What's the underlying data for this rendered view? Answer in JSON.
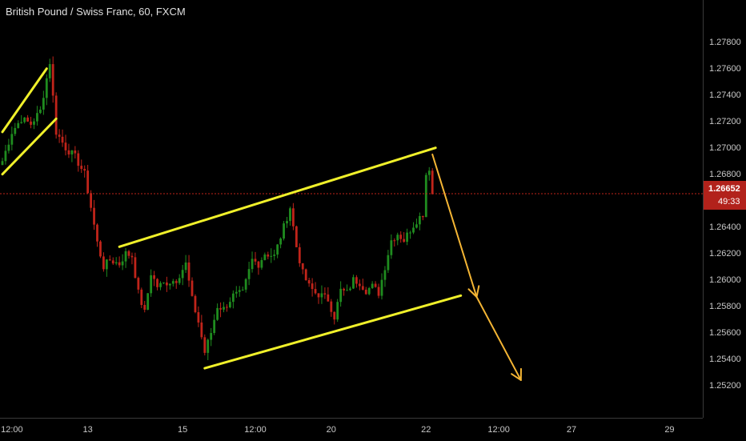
{
  "header": {
    "title": "British Pound / Swiss Franc, 60, FXCM"
  },
  "colors": {
    "up": "#1f8c1f",
    "down": "#c0241a",
    "trend_line": "#f0f02a",
    "projection": "#f4b534",
    "price_line": "#c0241a",
    "background": "#000000"
  },
  "price_axis": {
    "ticks": [
      "1.27800",
      "1.27600",
      "1.27400",
      "1.27200",
      "1.27000",
      "1.26800",
      "1.26600",
      "1.26400",
      "1.26200",
      "1.26000",
      "1.25800",
      "1.25600",
      "1.25400",
      "1.25200"
    ],
    "current_price": "1.26652",
    "countdown": "49:33"
  },
  "time_axis": {
    "ticks": [
      "12:00",
      "13",
      "15",
      "12:00",
      "20",
      "22",
      "12:00",
      "27",
      "29"
    ]
  },
  "chart_data": {
    "type": "line",
    "title": "British Pound / Swiss Franc, 60, FXCM",
    "xlabel": "",
    "ylabel": "",
    "ylim": [
      1.251,
      1.2795
    ],
    "x_index_range": [
      0,
      136
    ],
    "x_ticks": [
      {
        "i": 3,
        "label": "12:00"
      },
      {
        "i": 27,
        "label": "13"
      },
      {
        "i": 57,
        "label": "15"
      },
      {
        "i": 80,
        "label": "12:00"
      },
      {
        "i": 104,
        "label": "20"
      },
      {
        "i": 134,
        "label": "22"
      },
      {
        "i": 157,
        "label": "12:00"
      },
      {
        "i": 180,
        "label": "27"
      },
      {
        "i": 211,
        "label": "29"
      }
    ],
    "current_price": 1.26652,
    "price_anchors": [
      [
        0,
        1.269
      ],
      [
        3,
        1.2712
      ],
      [
        6,
        1.2722
      ],
      [
        9,
        1.2718
      ],
      [
        12,
        1.2728
      ],
      [
        15,
        1.2765
      ],
      [
        17,
        1.2712
      ],
      [
        20,
        1.27
      ],
      [
        23,
        1.2693
      ],
      [
        26,
        1.268
      ],
      [
        28,
        1.2655
      ],
      [
        30,
        1.2628
      ],
      [
        32,
        1.261
      ],
      [
        34,
        1.2615
      ],
      [
        37,
        1.2612
      ],
      [
        39,
        1.262
      ],
      [
        41,
        1.2618
      ],
      [
        43,
        1.259
      ],
      [
        45,
        1.2575
      ],
      [
        47,
        1.2605
      ],
      [
        49,
        1.2595
      ],
      [
        52,
        1.2598
      ],
      [
        55,
        1.26
      ],
      [
        58,
        1.2612
      ],
      [
        60,
        1.2585
      ],
      [
        62,
        1.2568
      ],
      [
        64,
        1.2545
      ],
      [
        66,
        1.256
      ],
      [
        68,
        1.258
      ],
      [
        70,
        1.2578
      ],
      [
        73,
        1.2588
      ],
      [
        76,
        1.259
      ],
      [
        79,
        1.2615
      ],
      [
        81,
        1.2612
      ],
      [
        83,
        1.262
      ],
      [
        86,
        1.2618
      ],
      [
        89,
        1.264
      ],
      [
        91,
        1.2655
      ],
      [
        93,
        1.2625
      ],
      [
        95,
        1.2605
      ],
      [
        97,
        1.2595
      ],
      [
        99,
        1.259
      ],
      [
        101,
        1.2588
      ],
      [
        103,
        1.2585
      ],
      [
        105,
        1.2572
      ],
      [
        107,
        1.2592
      ],
      [
        109,
        1.259
      ],
      [
        111,
        1.26
      ],
      [
        113,
        1.2598
      ],
      [
        115,
        1.2592
      ],
      [
        117,
        1.2595
      ],
      [
        119,
        1.259
      ],
      [
        121,
        1.261
      ],
      [
        123,
        1.263
      ],
      [
        125,
        1.2635
      ],
      [
        127,
        1.263
      ],
      [
        129,
        1.2638
      ],
      [
        131,
        1.2645
      ],
      [
        133,
        1.265
      ],
      [
        134,
        1.268
      ],
      [
        135,
        1.2685
      ],
      [
        136,
        1.2665
      ]
    ],
    "drawings": [
      {
        "type": "trend_line",
        "from": [
          0,
          1.2712
        ],
        "to": [
          14,
          1.276
        ]
      },
      {
        "type": "trend_line",
        "from": [
          0,
          1.268
        ],
        "to": [
          17,
          1.2722
        ]
      },
      {
        "type": "trend_line",
        "from": [
          37,
          1.2625
        ],
        "to": [
          137,
          1.27
        ]
      },
      {
        "type": "trend_line",
        "from": [
          64,
          1.2533
        ],
        "to": [
          145,
          1.2588
        ]
      },
      {
        "type": "arrow",
        "from": [
          136,
          1.2695
        ],
        "to": [
          150,
          1.2587
        ]
      },
      {
        "type": "arrow",
        "from": [
          150,
          1.2587
        ],
        "to": [
          164,
          1.2524
        ]
      }
    ]
  }
}
